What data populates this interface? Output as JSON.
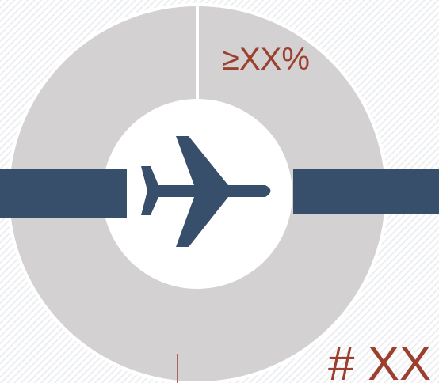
{
  "labels": {
    "percent": "≥XX%",
    "count": "# XX"
  }
}
